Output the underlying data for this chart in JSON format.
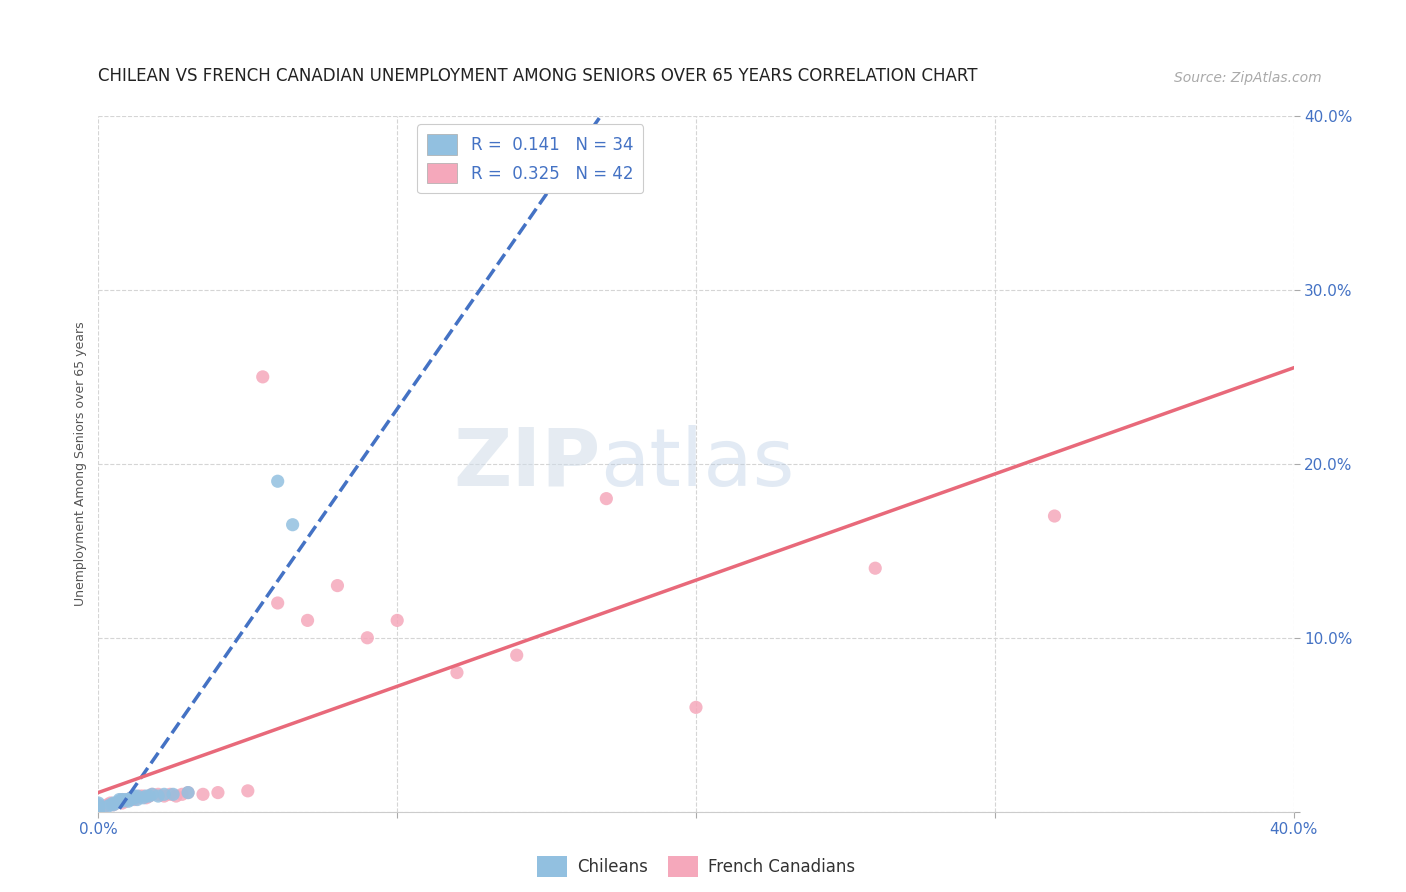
{
  "title": "CHILEAN VS FRENCH CANADIAN UNEMPLOYMENT AMONG SENIORS OVER 65 YEARS CORRELATION CHART",
  "source": "Source: ZipAtlas.com",
  "ylabel": "Unemployment Among Seniors over 65 years",
  "xlim": [
    0.0,
    0.4
  ],
  "ylim": [
    0.0,
    0.4
  ],
  "watermark_zip": "ZIP",
  "watermark_atlas": "atlas",
  "legend_r1": "R =  0.141   N = 34",
  "legend_r2": "R =  0.325   N = 42",
  "chilean_color": "#92c0e0",
  "french_color": "#f5a8bb",
  "chilean_line_color": "#4472c4",
  "french_line_color": "#e8697a",
  "title_fontsize": 12,
  "source_fontsize": 10,
  "axis_label_fontsize": 9,
  "tick_fontsize": 11,
  "legend_fontsize": 12,
  "chilean_x": [
    0.0,
    0.0,
    0.0,
    0.0,
    0.0,
    0.0,
    0.003,
    0.004,
    0.005,
    0.005,
    0.006,
    0.007,
    0.007,
    0.008,
    0.008,
    0.009,
    0.01,
    0.01,
    0.011,
    0.011,
    0.012,
    0.012,
    0.013,
    0.013,
    0.015,
    0.016,
    0.017,
    0.018,
    0.02,
    0.022,
    0.025,
    0.03,
    0.06,
    0.065
  ],
  "chilean_y": [
    0.0,
    0.001,
    0.002,
    0.003,
    0.004,
    0.005,
    0.003,
    0.004,
    0.004,
    0.005,
    0.005,
    0.006,
    0.007,
    0.006,
    0.007,
    0.007,
    0.006,
    0.007,
    0.007,
    0.008,
    0.008,
    0.009,
    0.007,
    0.009,
    0.008,
    0.009,
    0.009,
    0.01,
    0.009,
    0.01,
    0.01,
    0.011,
    0.19,
    0.165
  ],
  "french_x": [
    0.0,
    0.0,
    0.0,
    0.002,
    0.003,
    0.004,
    0.005,
    0.006,
    0.007,
    0.008,
    0.008,
    0.009,
    0.01,
    0.011,
    0.012,
    0.013,
    0.014,
    0.015,
    0.016,
    0.017,
    0.018,
    0.02,
    0.022,
    0.024,
    0.026,
    0.028,
    0.03,
    0.035,
    0.04,
    0.05,
    0.055,
    0.06,
    0.07,
    0.08,
    0.09,
    0.1,
    0.12,
    0.14,
    0.17,
    0.2,
    0.26,
    0.32
  ],
  "french_y": [
    0.0,
    0.002,
    0.003,
    0.003,
    0.004,
    0.005,
    0.004,
    0.005,
    0.006,
    0.005,
    0.007,
    0.006,
    0.007,
    0.008,
    0.007,
    0.008,
    0.009,
    0.009,
    0.008,
    0.009,
    0.01,
    0.01,
    0.009,
    0.01,
    0.009,
    0.01,
    0.011,
    0.01,
    0.011,
    0.012,
    0.25,
    0.12,
    0.11,
    0.13,
    0.1,
    0.11,
    0.08,
    0.09,
    0.18,
    0.06,
    0.14,
    0.17
  ]
}
